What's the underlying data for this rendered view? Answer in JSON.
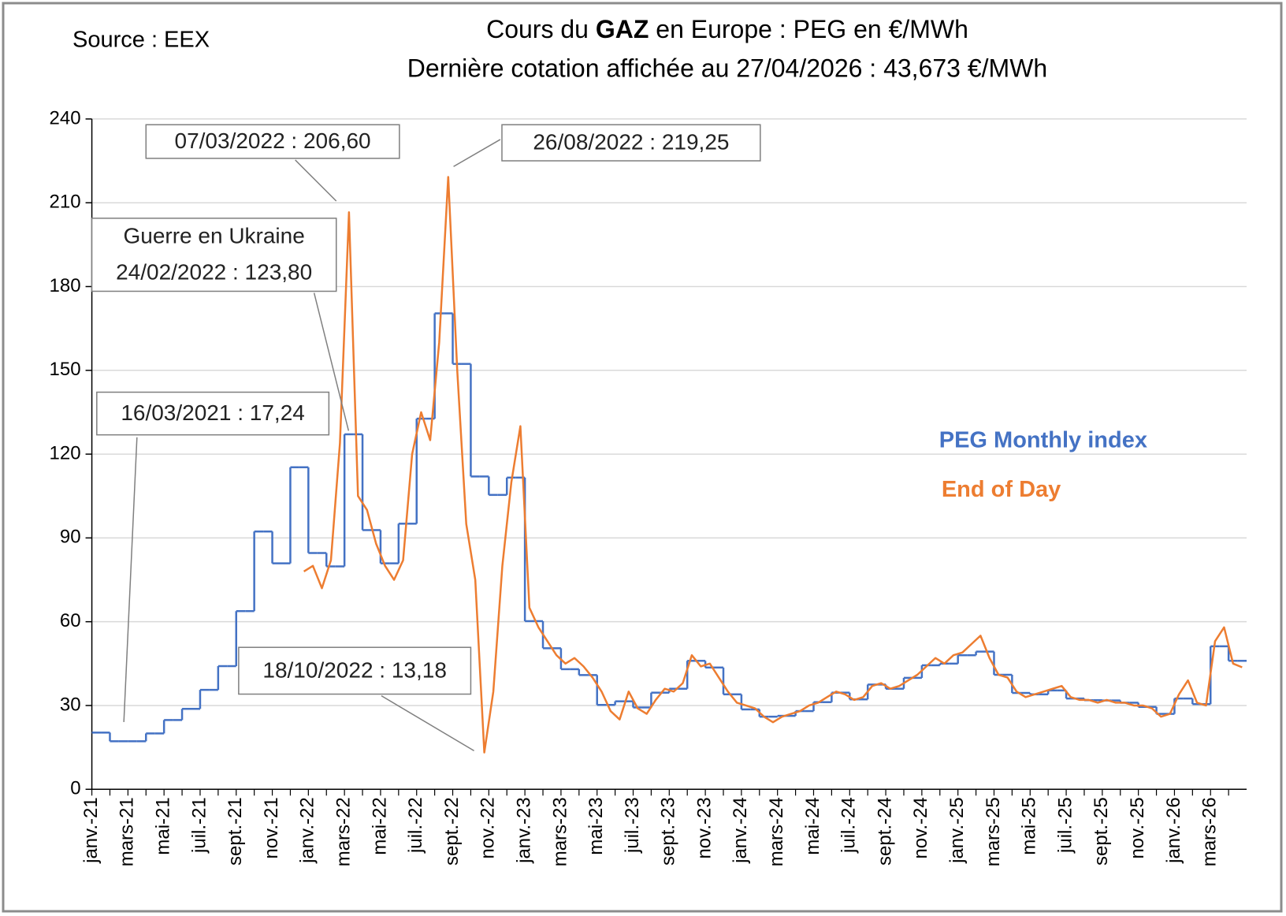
{
  "chart_data": {
    "type": "line",
    "source": "Source : EEX",
    "title": [
      "Cours du ",
      "GAZ",
      " en Europe : PEG en €/MWh"
    ],
    "subtitle": "Dernière cotation affichée au 27/04/2026 : 43,673 €/MWh",
    "categories": [
      "janv.-21",
      null,
      null,
      null,
      "mars-21",
      null,
      null,
      null,
      "mai-21",
      null,
      null,
      null,
      "juil.-21",
      null,
      null,
      null,
      "sept.-21",
      null,
      null,
      null,
      "nov.-21",
      null,
      null,
      null,
      "janv.-22",
      null,
      null,
      null,
      "mars-22",
      null,
      null,
      null,
      "mai-22",
      null,
      null,
      null,
      "juil.-22",
      null,
      null,
      null,
      "sept.-22",
      null,
      null,
      null,
      "nov.-22",
      null,
      null,
      null,
      "janv.-23",
      null,
      null,
      null,
      "mars-23",
      null,
      null,
      null,
      "mai-23",
      null,
      null,
      null,
      "juil.-23",
      null,
      null,
      null,
      "sept.-23",
      null,
      null,
      null,
      "nov.-23",
      null,
      null,
      null,
      "janv.-24",
      null,
      null,
      null,
      "mars-24",
      null,
      null,
      null,
      "mai-24",
      null,
      null,
      null,
      "juil.-24",
      null,
      null,
      null,
      "sept.-24",
      null,
      null,
      null,
      "nov.-24",
      null,
      null,
      null,
      "janv.-25",
      null,
      null,
      null,
      "mars-25",
      null,
      null,
      null,
      "mai-25",
      null,
      null,
      null,
      "juil.-25",
      null,
      null,
      null,
      "sept.-25",
      null,
      null,
      null,
      "nov.-25",
      null,
      null,
      null,
      "janv.-26",
      null,
      null,
      null,
      "mars-26",
      null,
      null,
      null
    ],
    "series": [
      {
        "name": "PEG Monthly index",
        "color": "#4472c4",
        "style": "step",
        "values": [
          20.3,
          20.3,
          17.2,
          17.2,
          17.2,
          17.2,
          20,
          20,
          24.8,
          24.8,
          28.8,
          28.8,
          35.6,
          35.6,
          44.1,
          44.1,
          63.8,
          63.8,
          92.3,
          92.3,
          80.9,
          80.9,
          115.3,
          115.3,
          84.6,
          84.6,
          79.8,
          79.8,
          127.1,
          127.1,
          92.8,
          92.8,
          80.9,
          80.9,
          95.1,
          95.1,
          132.7,
          132.7,
          170.4,
          170.4,
          152.3,
          152.3,
          112,
          112,
          105.4,
          105.4,
          111.6,
          111.6,
          60.2,
          60.2,
          50.5,
          50.5,
          43,
          43,
          40.9,
          40.9,
          30.2,
          30.2,
          31.5,
          31.5,
          29.3,
          29.3,
          34.6,
          34.6,
          36,
          36,
          46,
          46,
          43.6,
          43.6,
          34,
          34,
          28.6,
          28.6,
          26,
          26,
          26.3,
          26.3,
          28,
          28,
          31.2,
          31.2,
          34.6,
          34.6,
          32.2,
          32.2,
          37.5,
          37.5,
          36,
          36,
          39.9,
          39.9,
          44.4,
          44.4,
          45,
          45,
          48,
          48,
          49.3,
          49.3,
          41,
          41,
          34.5,
          34.5,
          34,
          34,
          35.4,
          35.4,
          32.5,
          32.5,
          31.9,
          31.9,
          31.8,
          31.8,
          31,
          31,
          29.5,
          29.5,
          27,
          27,
          32.5,
          32.5,
          30.5,
          30.5,
          51.2,
          51.2,
          46,
          46
        ]
      },
      {
        "name": "End of Day",
        "color": "#ed7d31",
        "style": "line",
        "values": [
          null,
          null,
          null,
          null,
          null,
          null,
          null,
          null,
          null,
          null,
          null,
          null,
          null,
          null,
          null,
          null,
          null,
          null,
          null,
          null,
          null,
          null,
          null,
          78,
          80,
          72,
          82,
          124,
          206.6,
          105,
          100,
          88,
          80,
          75,
          82,
          120,
          135,
          125,
          160,
          219.25,
          150,
          95,
          75,
          13.18,
          35,
          80,
          110,
          130,
          65,
          58,
          53,
          48,
          45,
          47,
          44,
          40,
          35,
          28,
          25,
          35,
          29,
          27,
          32,
          36,
          35,
          38,
          48,
          44,
          45,
          40,
          35,
          31,
          30,
          29,
          26,
          24,
          26,
          27,
          28,
          30,
          31,
          33,
          35,
          34,
          32,
          33,
          37,
          38,
          36,
          37,
          39,
          41,
          44,
          47,
          45,
          48,
          49,
          52,
          55,
          47,
          41,
          40,
          35,
          33,
          34,
          35,
          36,
          37,
          33,
          32,
          32,
          31,
          32,
          31,
          31,
          30,
          30,
          29,
          26,
          27,
          34,
          39,
          31,
          30,
          53,
          58,
          45,
          43.673
        ]
      }
    ],
    "ylim": [
      0,
      240
    ],
    "yticks": [
      0,
      30,
      60,
      90,
      120,
      150,
      180,
      210,
      240
    ],
    "grid": true,
    "annotations": [
      {
        "text": [
          "07/03/2022 : 206,60"
        ]
      },
      {
        "text": [
          "26/08/2022 : 219,25"
        ]
      },
      {
        "text": [
          "Guerre en Ukraine",
          "24/02/2022 : 123,80"
        ]
      },
      {
        "text": [
          "16/03/2021 : 17,24"
        ]
      },
      {
        "text": [
          "18/10/2022 : 13,18"
        ]
      }
    ]
  }
}
